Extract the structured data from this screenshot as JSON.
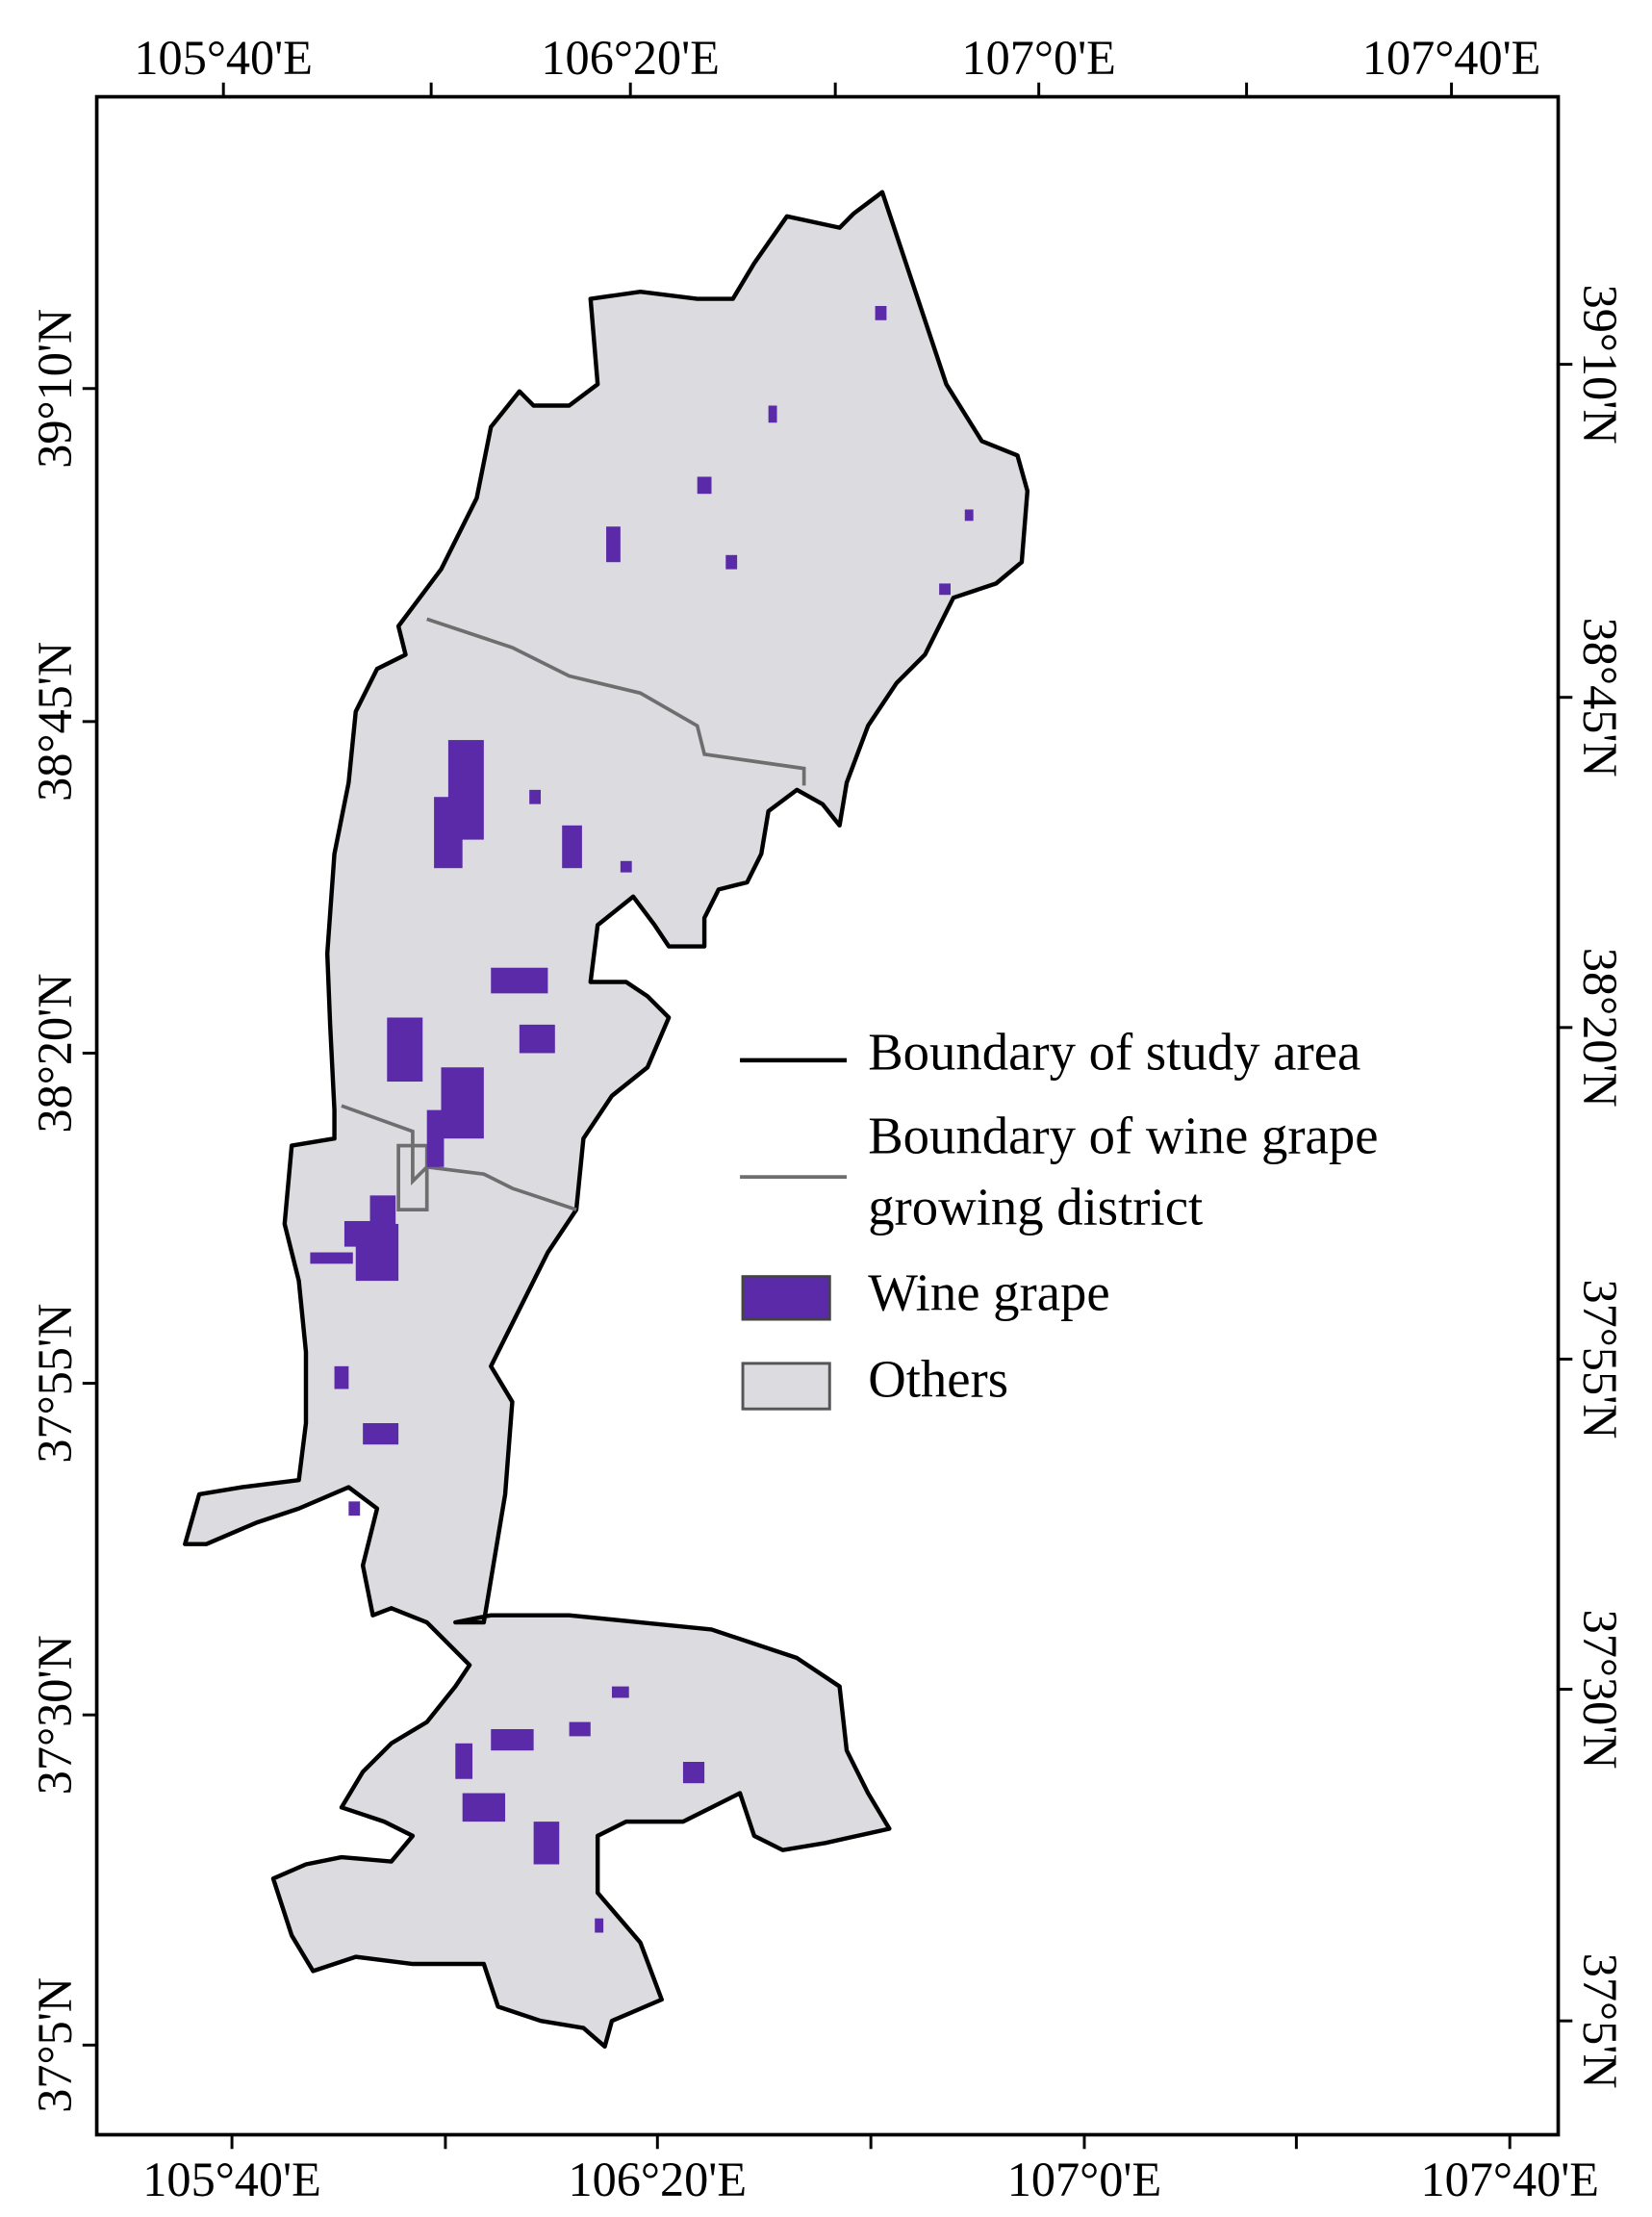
{
  "axes": {
    "top": [
      "105°40'E",
      "106°20'E",
      "107°0'E",
      "107°40'E"
    ],
    "bottom": [
      "105°40'E",
      "106°20'E",
      "107°0'E",
      "107°40'E"
    ],
    "left": [
      "39°10'N",
      "38°45'N",
      "38°20'N",
      "37°55'N",
      "37°30'N",
      "37°5'N"
    ],
    "right": [
      "39°10'N",
      "38°45'N",
      "38°20'N",
      "37°55'N",
      "37°30'N",
      "37°5'N"
    ]
  },
  "legend": {
    "study_boundary": "Boundary of study area",
    "district_boundary": [
      "Boundary of wine grape",
      "growing district"
    ],
    "wine_grape": "Wine grape",
    "others": "Others"
  }
}
